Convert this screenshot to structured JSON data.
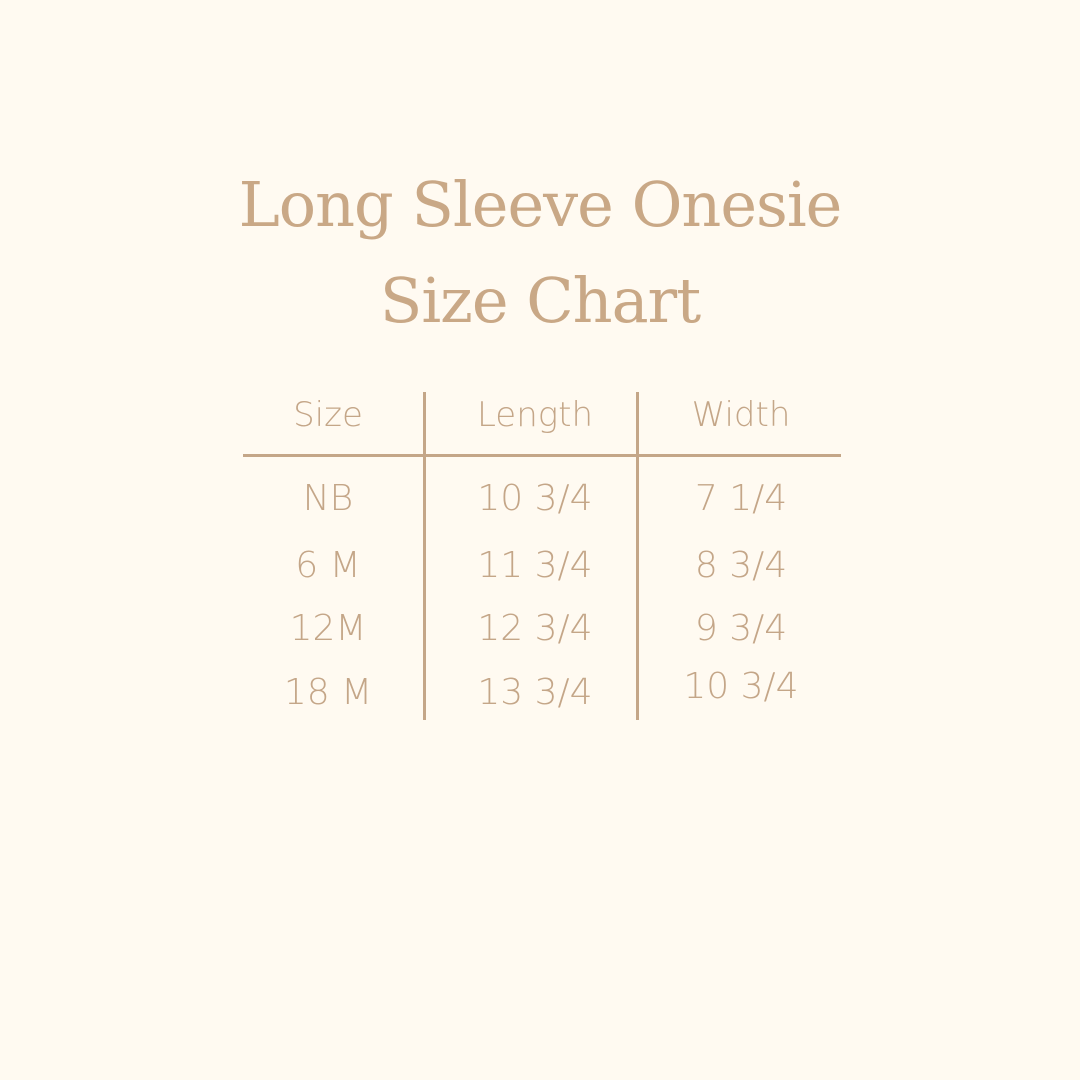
{
  "title_line1": "Long Sleeve Onesie",
  "title_line2": "Size Chart",
  "table": {
    "headers": [
      "Size",
      "Length",
      "Width"
    ],
    "rows": [
      [
        "NB",
        "10 3/4",
        "7 1/4"
      ],
      [
        "6 M",
        "11 3/4",
        "8 3/4"
      ],
      [
        "12M",
        "12 3/4",
        "9 3/4"
      ],
      [
        "18 M",
        "13 3/4",
        "10 3/4"
      ]
    ]
  },
  "colors": {
    "background": "#fffaf1",
    "text": "#c4a688"
  }
}
